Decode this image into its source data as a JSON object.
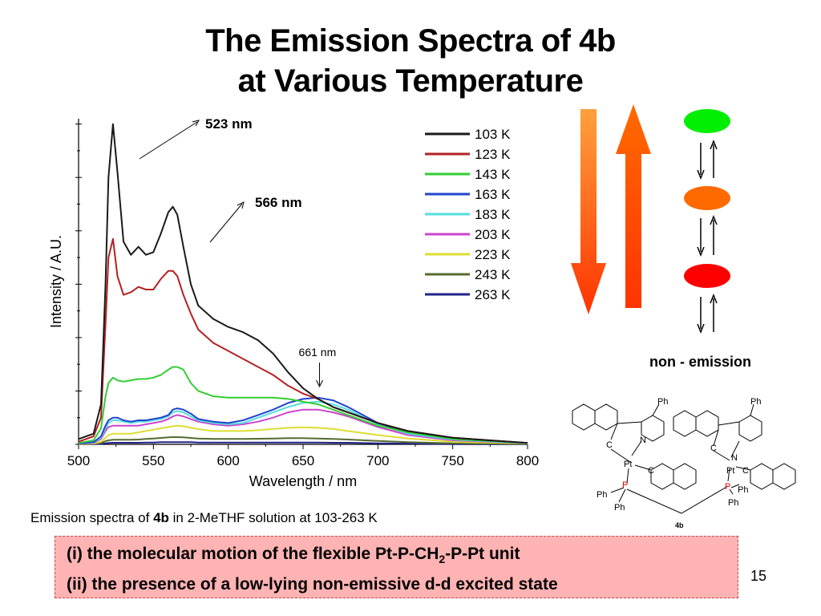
{
  "slide": {
    "title_line1": "The Emission Spectra of 4b",
    "title_line2": "at Various Temperature",
    "caption_pre": "Emission spectra of ",
    "caption_bold": "4b",
    "caption_post": " in 2-MeTHF solution at 103-263 K",
    "point1_pre": "(i)  the molecular motion of the flexible Pt-P-CH",
    "point1_sub": "2",
    "point1_post": "-P-Pt unit",
    "point2": "(ii) the presence of a low-lying non-emissive d-d excited state",
    "slide_number": "15",
    "non_emission": "non - emission",
    "molecule_label": "4b"
  },
  "diagram": {
    "state_colors": [
      "#00ee00",
      "#ff6a00",
      "#ff0000"
    ],
    "arrow_down_colors": [
      "#ffa03c",
      "#ff3300"
    ],
    "arrow_up_colors": [
      "#ff3300",
      "#ff6a00"
    ]
  },
  "molecule_text": {
    "ph": "Ph",
    "pt": "Pt",
    "p": "P",
    "n": "N",
    "c": "C"
  },
  "chart_data": {
    "type": "line",
    "xlabel": "Wavelength / nm",
    "ylabel": "Intensity / A.U.",
    "xlim": [
      500,
      800
    ],
    "ylim": [
      0,
      1.22
    ],
    "xticks": [
      500,
      550,
      600,
      650,
      700,
      750,
      800
    ],
    "legend_position": "top-right",
    "annotations": [
      {
        "text": "523 nm",
        "x": 523
      },
      {
        "text": "566 nm",
        "x": 566
      },
      {
        "text": "661 nm",
        "x": 661
      }
    ],
    "series": [
      {
        "name": "103 K",
        "color": "#1a1a1a",
        "x": [
          500,
          510,
          515,
          518,
          520,
          523,
          526,
          530,
          535,
          540,
          545,
          550,
          555,
          560,
          563,
          566,
          570,
          575,
          580,
          590,
          600,
          610,
          620,
          630,
          640,
          650,
          660,
          670,
          680,
          700,
          720,
          750,
          800
        ],
        "y": [
          0.02,
          0.04,
          0.15,
          0.6,
          1.0,
          1.2,
          1.02,
          0.76,
          0.71,
          0.74,
          0.71,
          0.72,
          0.79,
          0.87,
          0.89,
          0.86,
          0.74,
          0.6,
          0.52,
          0.47,
          0.44,
          0.42,
          0.39,
          0.34,
          0.27,
          0.21,
          0.17,
          0.14,
          0.12,
          0.08,
          0.05,
          0.025,
          0.005
        ]
      },
      {
        "name": "123 K",
        "color": "#b22222",
        "x": [
          500,
          510,
          515,
          518,
          520,
          523,
          526,
          530,
          535,
          540,
          545,
          550,
          555,
          560,
          563,
          566,
          570,
          575,
          580,
          590,
          600,
          610,
          620,
          630,
          640,
          650,
          660,
          670,
          680,
          700,
          720,
          750,
          800
        ],
        "y": [
          0.01,
          0.03,
          0.1,
          0.45,
          0.7,
          0.77,
          0.63,
          0.56,
          0.57,
          0.59,
          0.58,
          0.58,
          0.62,
          0.65,
          0.65,
          0.63,
          0.56,
          0.49,
          0.43,
          0.38,
          0.35,
          0.32,
          0.29,
          0.26,
          0.22,
          0.19,
          0.17,
          0.14,
          0.12,
          0.08,
          0.05,
          0.025,
          0.005
        ]
      },
      {
        "name": "143 K",
        "color": "#33cc33",
        "x": [
          500,
          510,
          515,
          518,
          520,
          523,
          526,
          530,
          535,
          540,
          545,
          550,
          555,
          560,
          563,
          566,
          570,
          575,
          580,
          590,
          600,
          610,
          620,
          630,
          640,
          650,
          660,
          670,
          680,
          700,
          720,
          750,
          800
        ],
        "y": [
          0.005,
          0.015,
          0.06,
          0.18,
          0.23,
          0.25,
          0.24,
          0.235,
          0.24,
          0.245,
          0.245,
          0.25,
          0.26,
          0.28,
          0.29,
          0.29,
          0.28,
          0.23,
          0.2,
          0.18,
          0.175,
          0.175,
          0.175,
          0.175,
          0.17,
          0.16,
          0.15,
          0.13,
          0.11,
          0.07,
          0.045,
          0.02,
          0.005
        ]
      },
      {
        "name": "163 K",
        "color": "#2244cc",
        "x": [
          500,
          510,
          515,
          518,
          520,
          523,
          526,
          530,
          535,
          540,
          545,
          550,
          555,
          560,
          563,
          566,
          570,
          575,
          580,
          590,
          600,
          610,
          620,
          630,
          640,
          650,
          660,
          670,
          680,
          700,
          720,
          750,
          800
        ],
        "y": [
          0.003,
          0.008,
          0.03,
          0.07,
          0.09,
          0.1,
          0.1,
          0.09,
          0.085,
          0.09,
          0.09,
          0.095,
          0.1,
          0.11,
          0.13,
          0.135,
          0.13,
          0.115,
          0.095,
          0.085,
          0.08,
          0.09,
          0.11,
          0.13,
          0.155,
          0.17,
          0.175,
          0.165,
          0.14,
          0.08,
          0.045,
          0.02,
          0.005
        ]
      },
      {
        "name": "183 K",
        "color": "#55dddd",
        "x": [
          500,
          510,
          515,
          518,
          520,
          523,
          526,
          530,
          535,
          540,
          545,
          550,
          555,
          560,
          563,
          566,
          570,
          575,
          580,
          590,
          600,
          610,
          620,
          630,
          640,
          650,
          660,
          670,
          680,
          700,
          720,
          750,
          800
        ],
        "y": [
          0.003,
          0.007,
          0.025,
          0.06,
          0.08,
          0.09,
          0.09,
          0.085,
          0.08,
          0.085,
          0.085,
          0.09,
          0.095,
          0.105,
          0.12,
          0.125,
          0.12,
          0.105,
          0.09,
          0.08,
          0.075,
          0.08,
          0.1,
          0.12,
          0.14,
          0.155,
          0.16,
          0.15,
          0.13,
          0.075,
          0.04,
          0.018,
          0.004
        ]
      },
      {
        "name": "203 K",
        "color": "#cc44cc",
        "x": [
          500,
          510,
          515,
          518,
          520,
          523,
          526,
          530,
          535,
          540,
          545,
          550,
          555,
          560,
          563,
          566,
          570,
          575,
          580,
          590,
          600,
          610,
          620,
          630,
          640,
          650,
          660,
          670,
          680,
          700,
          720,
          750,
          800
        ],
        "y": [
          0.002,
          0.005,
          0.02,
          0.05,
          0.065,
          0.07,
          0.07,
          0.07,
          0.07,
          0.07,
          0.075,
          0.08,
          0.085,
          0.095,
          0.105,
          0.11,
          0.105,
          0.095,
          0.085,
          0.075,
          0.07,
          0.075,
          0.085,
          0.1,
          0.12,
          0.13,
          0.13,
          0.12,
          0.105,
          0.065,
          0.035,
          0.015,
          0.004
        ]
      },
      {
        "name": "223 K",
        "color": "#dddd33",
        "x": [
          500,
          510,
          515,
          518,
          520,
          523,
          526,
          530,
          535,
          540,
          545,
          550,
          555,
          560,
          563,
          566,
          570,
          575,
          580,
          590,
          600,
          610,
          620,
          630,
          640,
          650,
          660,
          670,
          680,
          700,
          720,
          750,
          800
        ],
        "y": [
          0.001,
          0.003,
          0.01,
          0.025,
          0.035,
          0.04,
          0.04,
          0.04,
          0.04,
          0.045,
          0.05,
          0.055,
          0.06,
          0.065,
          0.068,
          0.07,
          0.068,
          0.062,
          0.057,
          0.05,
          0.05,
          0.05,
          0.053,
          0.058,
          0.062,
          0.064,
          0.062,
          0.058,
          0.05,
          0.035,
          0.022,
          0.01,
          0.003
        ]
      },
      {
        "name": "243 K",
        "color": "#556b2f",
        "x": [
          500,
          510,
          515,
          518,
          520,
          523,
          526,
          530,
          535,
          540,
          545,
          550,
          555,
          560,
          563,
          566,
          570,
          575,
          580,
          590,
          600,
          610,
          620,
          630,
          640,
          650,
          660,
          670,
          680,
          700,
          720,
          750,
          800
        ],
        "y": [
          0.0,
          0.002,
          0.005,
          0.012,
          0.015,
          0.017,
          0.017,
          0.017,
          0.017,
          0.018,
          0.02,
          0.022,
          0.024,
          0.026,
          0.027,
          0.027,
          0.026,
          0.024,
          0.022,
          0.02,
          0.02,
          0.02,
          0.021,
          0.022,
          0.023,
          0.023,
          0.022,
          0.02,
          0.018,
          0.013,
          0.008,
          0.004,
          0.001
        ]
      },
      {
        "name": "263 K",
        "color": "#222288",
        "x": [
          500,
          510,
          515,
          518,
          520,
          523,
          526,
          530,
          535,
          540,
          545,
          550,
          555,
          560,
          563,
          566,
          570,
          575,
          580,
          590,
          600,
          610,
          620,
          630,
          640,
          650,
          660,
          670,
          680,
          700,
          720,
          750,
          800
        ],
        "y": [
          0.0,
          0.001,
          0.002,
          0.004,
          0.005,
          0.006,
          0.006,
          0.006,
          0.006,
          0.006,
          0.007,
          0.007,
          0.008,
          0.008,
          0.008,
          0.008,
          0.008,
          0.008,
          0.007,
          0.007,
          0.007,
          0.007,
          0.007,
          0.007,
          0.007,
          0.007,
          0.007,
          0.006,
          0.006,
          0.004,
          0.003,
          0.001,
          0.0
        ]
      }
    ]
  }
}
